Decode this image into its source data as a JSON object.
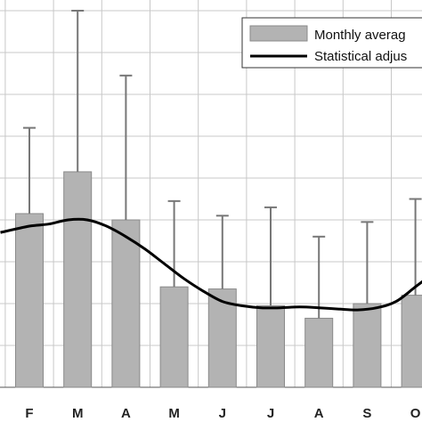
{
  "chart_data": {
    "type": "bar",
    "categories": [
      "F",
      "M",
      "A",
      "M",
      "J",
      "J",
      "A",
      "S",
      "O"
    ],
    "series": [
      {
        "name": "Monthly averag",
        "kind": "bar",
        "values": [
          4.15,
          5.15,
          4.0,
          2.4,
          2.35,
          1.95,
          1.65,
          2.0,
          2.2
        ],
        "error_upper": [
          6.2,
          9.0,
          7.45,
          4.45,
          4.1,
          4.3,
          3.6,
          3.95,
          4.5
        ],
        "color": "#b3b3b3"
      },
      {
        "name": "Statistical adjus",
        "kind": "line",
        "x": [
          -0.6,
          0,
          0.4,
          0.8,
          1.2,
          1.6,
          2.0,
          2.4,
          2.8,
          3.2,
          3.6,
          4.0,
          4.4,
          4.8,
          5.2,
          5.6,
          6.0,
          6.4,
          6.8,
          7.2,
          7.6,
          8.0,
          8.4
        ],
        "values": [
          3.7,
          3.85,
          3.9,
          4.0,
          4.0,
          3.85,
          3.6,
          3.3,
          2.95,
          2.6,
          2.3,
          2.05,
          1.95,
          1.9,
          1.9,
          1.92,
          1.9,
          1.87,
          1.85,
          1.9,
          2.05,
          2.4,
          2.75
        ],
        "color": "#000000"
      }
    ],
    "ylim": [
      0,
      9.3
    ],
    "y_gridlines": [
      0,
      1,
      2,
      3,
      4,
      5,
      6,
      7,
      8,
      9
    ],
    "grid": true,
    "legend_position": "top-right"
  },
  "colors": {
    "bar_fill": "#b3b3b3",
    "bar_stroke": "#8a8a8a",
    "error_bar": "#777777",
    "grid": "#c8c8c8",
    "line": "#000000"
  }
}
